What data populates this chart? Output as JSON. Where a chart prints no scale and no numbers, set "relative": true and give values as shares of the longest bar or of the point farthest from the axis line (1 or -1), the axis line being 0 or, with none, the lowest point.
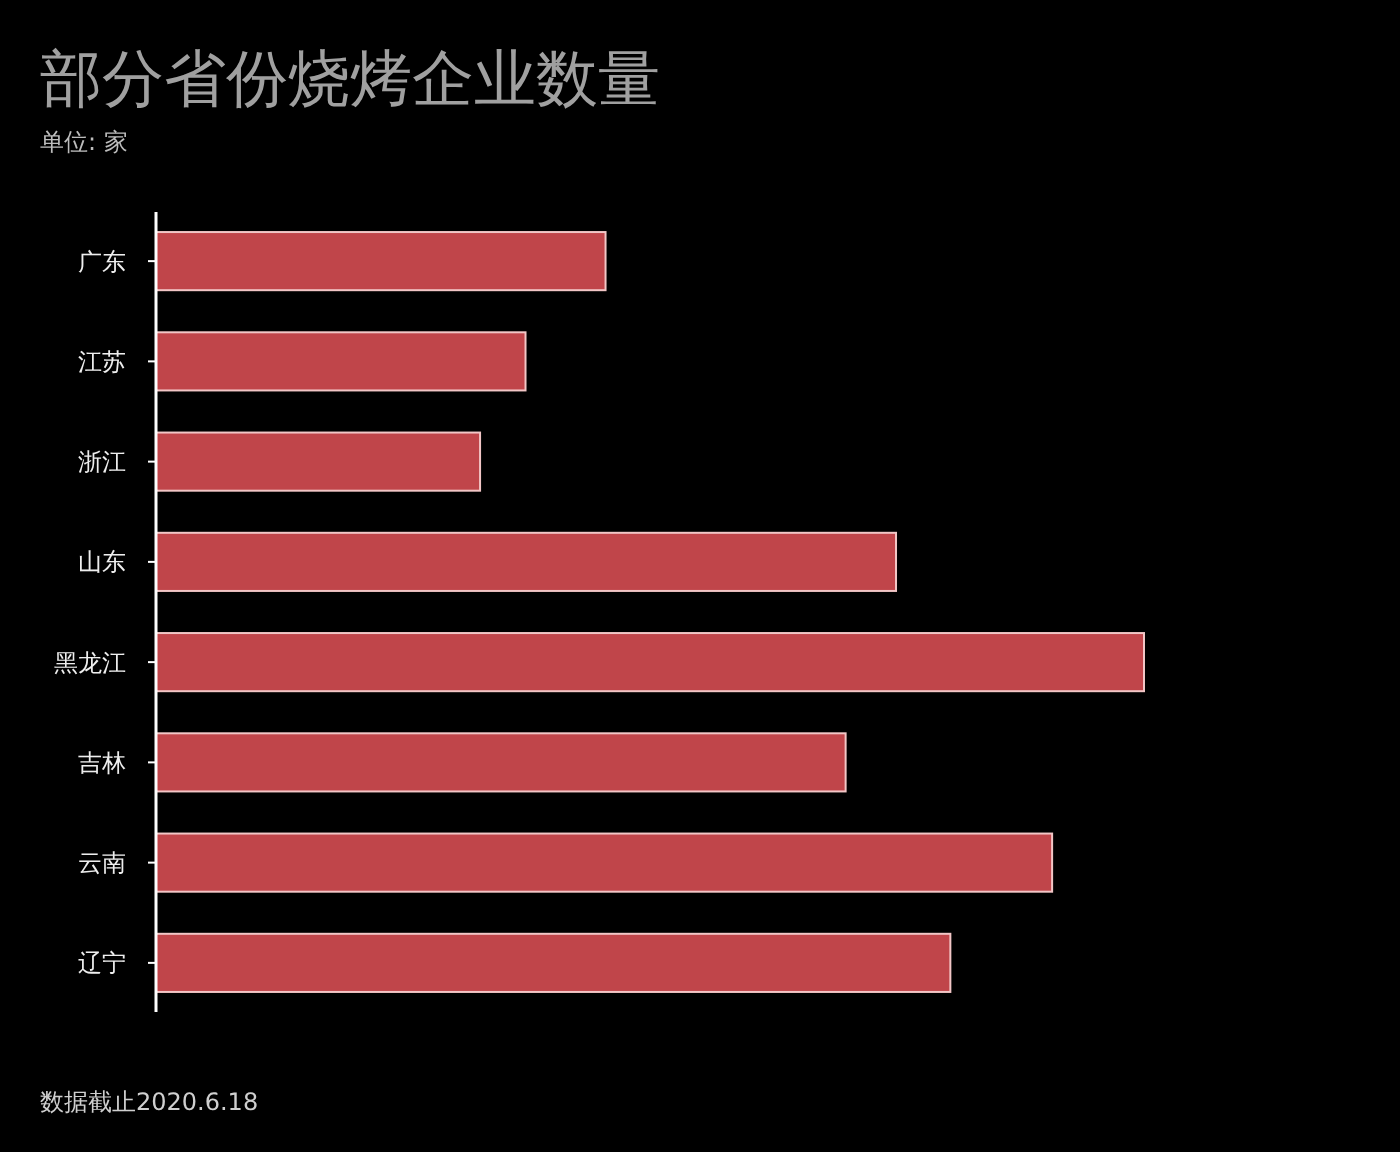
{
  "chart_data": {
    "type": "bar",
    "orientation": "horizontal",
    "relative": true,
    "title": "部分省份烧烤企业数量",
    "subtitle": "单位: 家",
    "categories": [
      "广东",
      "江苏",
      "浙江",
      "山东",
      "黑龙江",
      "吉林",
      "云南",
      "辽宁"
    ],
    "values": [
      0.455,
      0.374,
      0.328,
      0.749,
      1,
      0.698,
      0.907,
      0.804
    ],
    "color": "#c0454a",
    "annotations": [
      "数据截止2020.6.18"
    ]
  }
}
